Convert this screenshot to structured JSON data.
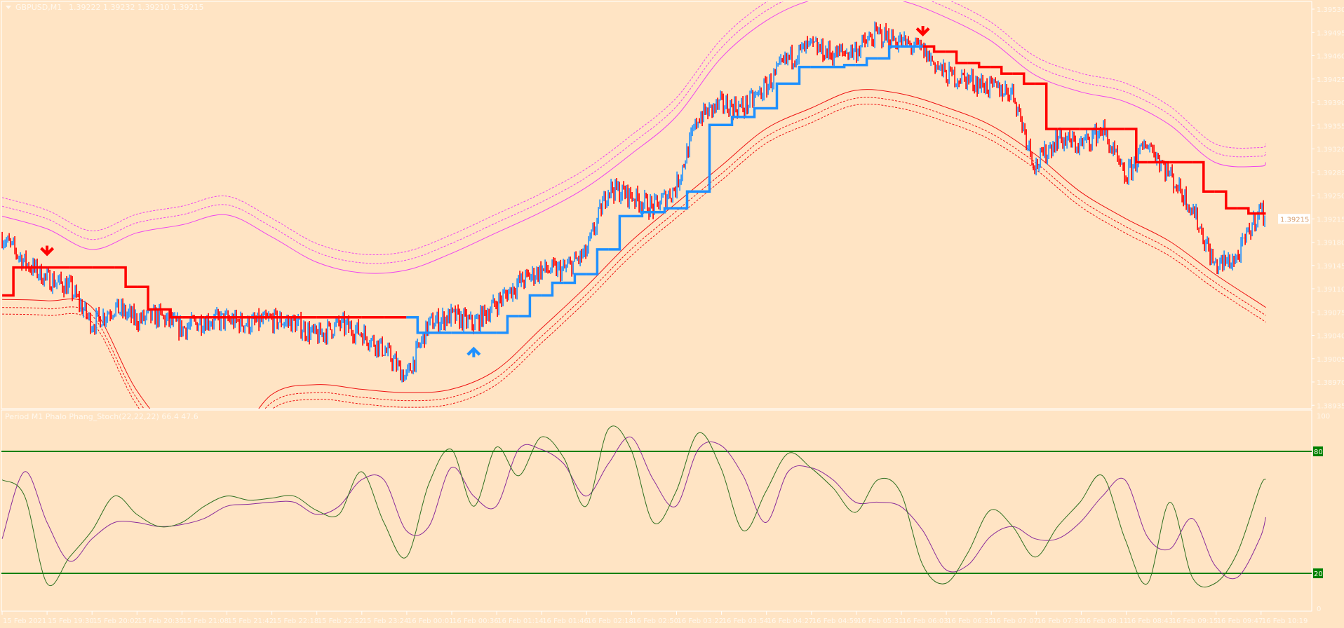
{
  "window": {
    "menu_icon": "triangle-down-icon",
    "symbol": "GBPUSD,M1",
    "ohlc": "1.39222 1.39232 1.39210 1.39215"
  },
  "colors": {
    "background": "#ffe4c4",
    "axis_text": "#fff8ee",
    "bull": "#1e90ff",
    "bear": "#ff0000",
    "upper_band": "#ee44ee",
    "lower_band": "#ee1111",
    "stoch_main": "#2f6f1f",
    "stoch_signal": "#8a2a9a",
    "level_line": "#008000"
  },
  "time_axis": {
    "labels": [
      "15 Feb 2021",
      "15 Feb 19:30",
      "15 Feb 20:02",
      "15 Feb 20:35",
      "15 Feb 21:08",
      "15 Feb 21:42",
      "15 Feb 22:18",
      "15 Feb 22:52",
      "15 Feb 23:24",
      "16 Feb 00:01",
      "16 Feb 00:36",
      "16 Feb 01:14",
      "16 Feb 01:46",
      "16 Feb 02:18",
      "16 Feb 02:50",
      "16 Feb 03:22",
      "16 Feb 03:54",
      "16 Feb 04:27",
      "16 Feb 04:59",
      "16 Feb 05:31",
      "16 Feb 06:03",
      "16 Feb 06:35",
      "16 Feb 07:07",
      "16 Feb 07:39",
      "16 Feb 08:11",
      "16 Feb 08:43",
      "16 Feb 09:15",
      "16 Feb 09:47",
      "16 Feb 10:19"
    ]
  },
  "chart_data": [
    {
      "type": "line",
      "title": "GBPUSD,M1",
      "y_ticks": [
        "1.39530",
        "1.39495",
        "1.39460",
        "1.39425",
        "1.39390",
        "1.39355",
        "1.39320",
        "1.39285",
        "1.39250",
        "1.39215",
        "1.39180",
        "1.39145",
        "1.39110",
        "1.39075",
        "1.39040",
        "1.39005",
        "1.38970",
        "1.38935"
      ],
      "ylim": [
        1.38935,
        1.3953
      ],
      "current_price": "1.39215",
      "x": [
        "15 Feb 18:58",
        "19:14",
        "19:30",
        "19:46",
        "20:02",
        "20:18",
        "20:35",
        "20:51",
        "21:08",
        "21:25",
        "21:42",
        "22:00",
        "22:18",
        "22:35",
        "22:52",
        "23:08",
        "23:24",
        "23:42",
        "16 Feb 00:01",
        "00:18",
        "00:36",
        "00:55",
        "01:14",
        "01:30",
        "01:46",
        "02:02",
        "02:18",
        "02:34",
        "02:50",
        "03:06",
        "03:22",
        "03:38",
        "03:54",
        "04:10",
        "04:27",
        "04:43",
        "04:59",
        "05:15",
        "05:31",
        "05:47",
        "06:03",
        "06:19",
        "06:35",
        "06:51",
        "07:07",
        "07:23",
        "07:39",
        "07:55",
        "08:11",
        "08:27",
        "08:43",
        "08:59",
        "09:15",
        "09:31",
        "09:47",
        "10:03",
        "10:19",
        "10:23"
      ],
      "close": [
        1.39188,
        1.3915,
        1.39125,
        1.39113,
        1.39057,
        1.39082,
        1.39063,
        1.39069,
        1.3905,
        1.39063,
        1.39063,
        1.39057,
        1.39063,
        1.39059,
        1.39038,
        1.39057,
        1.39044,
        1.39019,
        1.38976,
        1.39057,
        1.39069,
        1.39057,
        1.39088,
        1.39119,
        1.39138,
        1.39138,
        1.39163,
        1.39262,
        1.3925,
        1.39231,
        1.39262,
        1.39368,
        1.39387,
        1.39381,
        1.39412,
        1.39456,
        1.39474,
        1.39462,
        1.39468,
        1.39493,
        1.39481,
        1.39468,
        1.39431,
        1.39425,
        1.39412,
        1.39406,
        1.39294,
        1.39337,
        1.39325,
        1.3935,
        1.39275,
        1.39331,
        1.39281,
        1.39231,
        1.39144,
        1.39156,
        1.39231,
        1.39215
      ],
      "trend_line": [
        1.391,
        1.39142,
        1.39142,
        1.39142,
        1.39142,
        1.39142,
        1.39113,
        1.39079,
        1.39067,
        1.39067,
        1.39067,
        1.39067,
        1.39067,
        1.39067,
        1.39067,
        1.39067,
        1.39067,
        1.39067,
        1.39067,
        1.39044,
        1.39044,
        1.39044,
        1.39044,
        1.39069,
        1.391,
        1.39119,
        1.39132,
        1.39169,
        1.39219,
        1.39225,
        1.39231,
        1.39256,
        1.39356,
        1.39368,
        1.39381,
        1.39418,
        1.39443,
        1.39443,
        1.39446,
        1.39456,
        1.39474,
        1.39474,
        1.39466,
        1.39449,
        1.39443,
        1.39433,
        1.39418,
        1.3935,
        1.3935,
        1.3935,
        1.3935,
        1.393,
        1.393,
        1.393,
        1.39256,
        1.39231,
        1.39223,
        1.39223
      ],
      "trend_dir": [
        "up",
        "down",
        "down",
        "down",
        "down",
        "down",
        "down",
        "down",
        "down",
        "down",
        "down",
        "down",
        "down",
        "down",
        "down",
        "down",
        "down",
        "down",
        "down",
        "up",
        "up",
        "up",
        "up",
        "up",
        "up",
        "up",
        "up",
        "up",
        "up",
        "up",
        "up",
        "up",
        "up",
        "up",
        "up",
        "up",
        "up",
        "up",
        "up",
        "up",
        "up",
        "up",
        "down",
        "down",
        "down",
        "down",
        "down",
        "down",
        "down",
        "down",
        "down",
        "down",
        "down",
        "down",
        "down",
        "down",
        "down",
        "down"
      ],
      "arrows": [
        {
          "x": "19:30",
          "price": 1.3916,
          "dir": "down"
        },
        {
          "x": "00:55",
          "price": 1.39022,
          "dir": "up"
        },
        {
          "x": "06:19",
          "price": 1.3949,
          "dir": "down"
        }
      ],
      "band_x": [
        "15 Feb 2021",
        "19:30",
        "20:02",
        "20:35",
        "21:08",
        "21:42",
        "22:18",
        "22:52",
        "23:24",
        "00:01",
        "00:36",
        "01:14",
        "01:46",
        "02:18",
        "02:50",
        "03:22",
        "03:54",
        "04:27",
        "04:59",
        "05:31",
        "06:03",
        "06:35",
        "07:07",
        "07:39",
        "08:11",
        "08:43",
        "09:15",
        "09:47",
        "10:19",
        "10:23"
      ],
      "upper_band": [
        1.39219,
        1.392,
        1.39169,
        1.39194,
        1.39206,
        1.39221,
        1.39188,
        1.3915,
        1.39134,
        1.39138,
        1.39163,
        1.39194,
        1.39225,
        1.39262,
        1.39312,
        1.39368,
        1.39456,
        1.39512,
        1.39543,
        1.39549,
        1.39543,
        1.39518,
        1.39483,
        1.39431,
        1.39406,
        1.39391,
        1.39356,
        1.393,
        1.39294,
        1.393
      ],
      "upper_dashed_offsets": [
        0.00015,
        0.00028
      ],
      "lower_band": [
        1.39094,
        1.39092,
        1.39082,
        1.38957,
        1.38882,
        1.3887,
        1.38951,
        1.38966,
        1.38959,
        1.38954,
        1.38959,
        1.38988,
        1.3905,
        1.39113,
        1.39181,
        1.39238,
        1.39294,
        1.3935,
        1.39381,
        1.39408,
        1.39403,
        1.39383,
        1.39356,
        1.39312,
        1.39256,
        1.39216,
        1.39181,
        1.39132,
        1.39088,
        1.39082
      ],
      "lower_dashed_offsets": [
        -0.00012,
        -0.00022
      ]
    },
    {
      "type": "line",
      "title": "Period M1 Phalo Phang_Stoch(22,22,22) 66.4 47.6",
      "ylim": [
        0,
        100
      ],
      "y_ticks": [
        "100",
        "0"
      ],
      "levels": [
        "80",
        "20"
      ],
      "main": [
        66,
        58,
        15,
        28,
        41,
        58,
        49,
        43,
        45,
        53,
        58,
        56,
        57,
        58,
        51,
        49,
        70,
        45,
        28,
        64,
        81,
        53,
        82,
        68,
        87,
        77,
        53,
        91,
        81,
        45,
        60,
        89,
        72,
        41,
        60,
        79,
        72,
        62,
        50,
        66,
        60,
        24,
        15,
        30,
        51,
        43,
        28,
        43,
        55,
        68,
        37,
        15,
        55,
        18,
        15,
        30,
        62,
        66.4
      ],
      "signal": [
        37,
        70,
        45,
        26,
        37,
        45,
        45,
        43,
        44,
        47,
        53,
        54,
        55,
        55,
        49,
        53,
        66,
        66,
        41,
        43,
        72,
        58,
        53,
        81,
        81,
        74,
        58,
        74,
        87,
        66,
        53,
        81,
        83,
        68,
        45,
        70,
        72,
        66,
        55,
        55,
        53,
        41,
        22,
        24,
        38,
        43,
        37,
        37,
        45,
        58,
        66,
        38,
        32,
        47,
        24,
        18,
        37,
        47.6
      ]
    }
  ]
}
